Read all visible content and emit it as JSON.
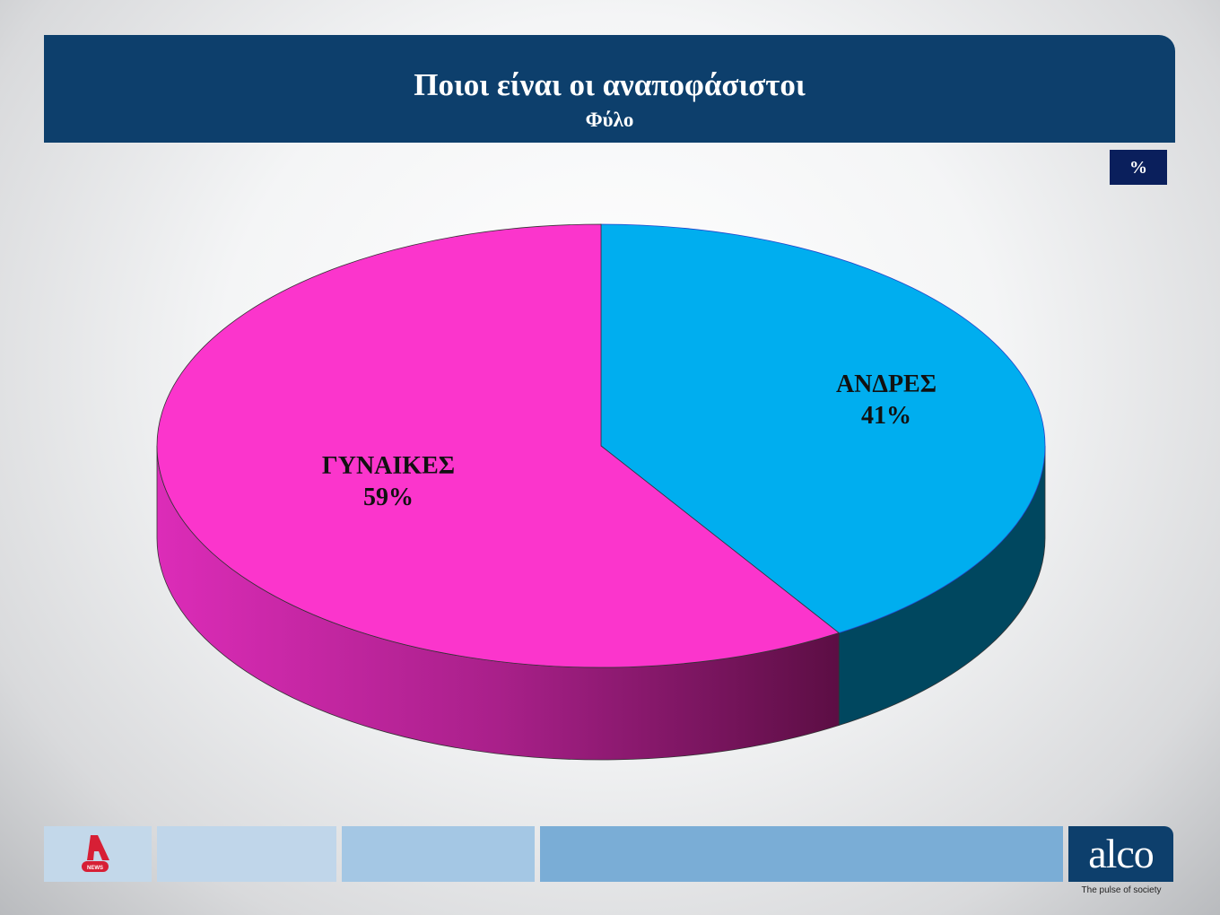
{
  "header": {
    "title": "Ποιοι είναι οι αναποφάσιστοι",
    "subtitle": "Φύλο"
  },
  "unit_badge": "%",
  "chart_data": {
    "type": "pie",
    "style": "3d",
    "title": "Ποιοι είναι οι αναποφάσιστοι",
    "subtitle": "Φύλο",
    "start": "12 o'clock, clockwise",
    "slices": [
      {
        "label": "ΑΝΔΡΕΣ",
        "value": 41,
        "value_label": "41%",
        "color": "#00aeef",
        "side_color": "#00475f"
      },
      {
        "label": "ΓΥΝΑΙΚΕΣ",
        "value": 59,
        "value_label": "59%",
        "color": "#fb35cc",
        "side_color": "#d42ab0"
      }
    ]
  },
  "footer": {
    "left_logo": "A NEWS",
    "right_logo": "alco",
    "tagline": "The pulse of society",
    "bar_colors": [
      "#c3d8ea",
      "#c0d6ea",
      "#a4c7e4",
      "#7aadd6"
    ]
  }
}
